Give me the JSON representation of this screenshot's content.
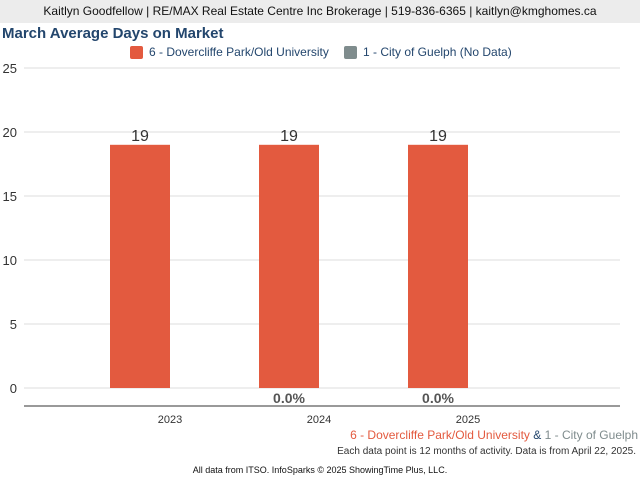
{
  "header": {
    "contact": "Kaitlyn Goodfellow | RE/MAX Real Estate Centre Inc Brokerage | 519-836-6365 | kaitlyn@kmghomes.ca"
  },
  "colors": {
    "series1": "#e35a3f",
    "series2": "#7f8c8d",
    "title": "#23466d"
  },
  "footer": {
    "series1_label": "6 - Dovercliffe Park/Old University",
    "ampersand": "&",
    "series2_label": "1 - City of Guelph",
    "note": "Each data point is 12 months of activity. Data is from April 22, 2025.",
    "source": "All data from ITSO. InfoSparks © 2025 ShowingTime Plus, LLC."
  },
  "chart_data": {
    "type": "bar",
    "title": "March Average Days on Market",
    "categories": [
      "2023",
      "2024",
      "2025"
    ],
    "series": [
      {
        "name": "6 - Dovercliffe Park/Old University",
        "values": [
          19,
          19,
          19
        ],
        "color": "#e35a3f"
      },
      {
        "name": "1 - City of Guelph (No Data)",
        "values": [
          null,
          null,
          null
        ],
        "color": "#7f8c8d"
      }
    ],
    "data_labels": [
      "19",
      "19",
      "19"
    ],
    "change_labels": [
      "",
      "0.0%",
      "0.0%"
    ],
    "ylim": [
      0,
      25
    ],
    "yticks": [
      0,
      5,
      10,
      15,
      20,
      25
    ],
    "grid": true,
    "legend": "top-center"
  }
}
